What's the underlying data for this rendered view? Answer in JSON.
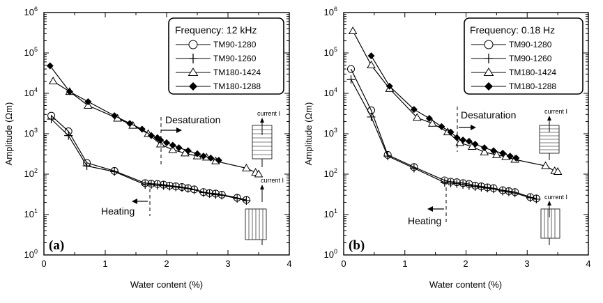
{
  "chart_data": [
    {
      "type": "line",
      "panel_label": "(a)",
      "xlabel": "Water content (%)",
      "ylabel": "Amplitude (Ωm)",
      "xlim": [
        0,
        4
      ],
      "ylim_log10": [
        0,
        6
      ],
      "x_ticks": [
        "0",
        "1",
        "2",
        "3",
        "4"
      ],
      "y_ticks": [
        {
          "base": "10",
          "exp": "0"
        },
        {
          "base": "10",
          "exp": "1"
        },
        {
          "base": "10",
          "exp": "2"
        },
        {
          "base": "10",
          "exp": "3"
        },
        {
          "base": "10",
          "exp": "4"
        },
        {
          "base": "10",
          "exp": "5"
        },
        {
          "base": "10",
          "exp": "6"
        }
      ],
      "legend_title": "Frequency: 12 kHz",
      "annotations": {
        "desaturation": "Desaturation",
        "heating": "Heating",
        "current": "current I"
      },
      "series": [
        {
          "name": "TM90-1280",
          "marker": "circle",
          "x": [
            0.12,
            0.4,
            0.7,
            1.15,
            1.65,
            1.75,
            1.85,
            1.95,
            2.05,
            2.15,
            2.25,
            2.35,
            2.45,
            2.6,
            2.7,
            2.8,
            2.9,
            3.15,
            3.3
          ],
          "y": [
            2800,
            1150,
            190,
            120,
            60,
            58,
            57,
            55,
            52,
            50,
            48,
            45,
            42,
            36,
            34,
            33,
            31,
            26,
            23
          ]
        },
        {
          "name": "TM90-1260",
          "marker": "plus",
          "x": [
            0.12,
            0.4,
            0.7,
            1.15,
            1.65,
            1.75,
            1.85,
            1.95,
            2.05,
            2.15,
            2.25,
            2.35,
            2.45,
            2.6,
            2.7,
            2.8,
            2.9,
            3.15,
            3.3
          ],
          "y": [
            2300,
            900,
            160,
            115,
            55,
            55,
            53,
            52,
            50,
            48,
            46,
            44,
            41,
            35,
            33,
            31,
            30,
            25,
            22
          ]
        },
        {
          "name": "TM180-1424",
          "marker": "triangle",
          "x": [
            0.15,
            0.42,
            0.72,
            1.2,
            1.45,
            1.7,
            1.9,
            2.1,
            2.3,
            2.5,
            2.65,
            2.8,
            3.3,
            3.45,
            3.5
          ],
          "y": [
            20000,
            11000,
            5000,
            2400,
            1600,
            1000,
            550,
            400,
            330,
            280,
            260,
            210,
            140,
            110,
            100
          ]
        },
        {
          "name": "TM180-1288",
          "marker": "diamond",
          "x": [
            0.1,
            0.42,
            0.72,
            1.15,
            1.4,
            1.6,
            1.75,
            1.85,
            1.9,
            2.0,
            2.1,
            2.2,
            2.35,
            2.5,
            2.6,
            2.72,
            2.85
          ],
          "y": [
            48000,
            11000,
            6200,
            2800,
            1800,
            1300,
            900,
            800,
            700,
            600,
            520,
            450,
            380,
            320,
            280,
            250,
            220
          ]
        }
      ]
    },
    {
      "type": "line",
      "panel_label": "(b)",
      "xlabel": "Water content (%)",
      "ylabel": "Amplitude (Ωm)",
      "xlim": [
        0,
        4
      ],
      "ylim_log10": [
        0,
        6
      ],
      "x_ticks": [
        "0",
        "1",
        "2",
        "3",
        "4"
      ],
      "y_ticks": [
        {
          "base": "10",
          "exp": "0"
        },
        {
          "base": "10",
          "exp": "1"
        },
        {
          "base": "10",
          "exp": "2"
        },
        {
          "base": "10",
          "exp": "3"
        },
        {
          "base": "10",
          "exp": "4"
        },
        {
          "base": "10",
          "exp": "5"
        },
        {
          "base": "10",
          "exp": "6"
        }
      ],
      "legend_title": "Frequency: 0.18 Hz",
      "annotations": {
        "desaturation": "Desaturation",
        "heating": "Heating",
        "current": "current I"
      },
      "series": [
        {
          "name": "TM90-1280",
          "marker": "circle",
          "x": [
            0.12,
            0.45,
            0.72,
            1.15,
            1.65,
            1.75,
            1.85,
            1.95,
            2.05,
            2.15,
            2.25,
            2.35,
            2.45,
            2.6,
            2.7,
            2.8,
            3.05,
            3.15
          ],
          "y": [
            40000,
            3800,
            300,
            150,
            70,
            65,
            63,
            60,
            57,
            52,
            50,
            47,
            45,
            40,
            38,
            36,
            27,
            25
          ]
        },
        {
          "name": "TM90-1260",
          "marker": "plus",
          "x": [
            0.12,
            0.45,
            0.72,
            1.15,
            1.65,
            1.75,
            1.85,
            1.95,
            2.05,
            2.15,
            2.25,
            2.35,
            2.45,
            2.6,
            2.7,
            2.8,
            3.05,
            3.15
          ],
          "y": [
            22000,
            2600,
            280,
            140,
            62,
            60,
            58,
            55,
            52,
            49,
            47,
            45,
            43,
            38,
            36,
            34,
            26,
            24
          ]
        },
        {
          "name": "TM180-1424",
          "marker": "triangle",
          "x": [
            0.15,
            0.45,
            0.75,
            1.2,
            1.45,
            1.7,
            1.9,
            2.1,
            2.3,
            2.5,
            2.65,
            2.8,
            3.3,
            3.45,
            3.5
          ],
          "y": [
            350000,
            50000,
            13000,
            2500,
            1800,
            1100,
            600,
            480,
            350,
            300,
            270,
            230,
            160,
            120,
            115
          ]
        },
        {
          "name": "TM180-1288",
          "marker": "diamond",
          "x": [
            0.45,
            0.75,
            1.15,
            1.4,
            1.6,
            1.75,
            1.85,
            1.95,
            2.05,
            2.15,
            2.3,
            2.45,
            2.6,
            2.72,
            2.82
          ],
          "y": [
            85000,
            15000,
            4000,
            2400,
            1500,
            1100,
            800,
            700,
            650,
            550,
            450,
            380,
            330,
            280,
            250
          ]
        }
      ]
    }
  ]
}
